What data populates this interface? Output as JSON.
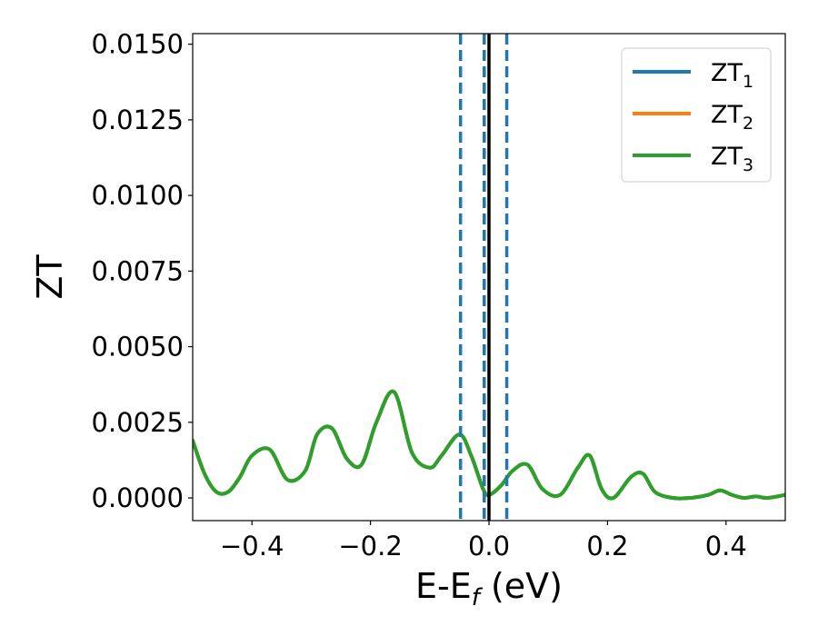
{
  "chart_data": {
    "type": "line",
    "title": "",
    "xlabel": "E-E",
    "xlabel_subscript": "f",
    "xlabel_unit": " (eV)",
    "ylabel": "ZT",
    "xlim": [
      -0.5,
      0.5
    ],
    "ylim": [
      -0.00075,
      0.01535
    ],
    "x_ticks": [
      -0.4,
      -0.2,
      0.0,
      0.2,
      0.4
    ],
    "x_tick_labels": [
      "−0.4",
      "−0.2",
      "0.0",
      "0.2",
      "0.4"
    ],
    "y_ticks": [
      0.0,
      0.0025,
      0.005,
      0.0075,
      0.01,
      0.0125,
      0.015
    ],
    "y_tick_labels": [
      "0.0000",
      "0.0025",
      "0.0050",
      "0.0075",
      "0.0100",
      "0.0125",
      "0.0150"
    ],
    "grid": false,
    "legend_position": "top-right",
    "vertical_lines": [
      {
        "x": -0.048,
        "style": "dashed",
        "color": "#1f77b4"
      },
      {
        "x": -0.008,
        "style": "dashed",
        "color": "#1f77b4"
      },
      {
        "x": 0.0,
        "style": "solid",
        "color": "#000000"
      },
      {
        "x": 0.03,
        "style": "dashed",
        "color": "#1f77b4"
      }
    ],
    "series": [
      {
        "name": "ZT",
        "name_subscript": "1",
        "color": "#1f77b4",
        "x": [
          -0.5,
          -0.48,
          -0.46,
          -0.44,
          -0.42,
          -0.4,
          -0.37,
          -0.34,
          -0.31,
          -0.29,
          -0.265,
          -0.24,
          -0.215,
          -0.19,
          -0.16,
          -0.13,
          -0.1,
          -0.08,
          -0.05,
          -0.03,
          -0.01,
          0.0,
          0.02,
          0.04,
          0.065,
          0.09,
          0.12,
          0.15,
          0.17,
          0.19,
          0.21,
          0.24,
          0.26,
          0.28,
          0.31,
          0.34,
          0.37,
          0.39,
          0.41,
          0.43,
          0.45,
          0.47,
          0.5
        ],
        "y": [
          0.0019,
          0.0008,
          0.0002,
          0.0002,
          0.0007,
          0.0014,
          0.0016,
          0.0006,
          0.0009,
          0.0021,
          0.0023,
          0.0013,
          0.0011,
          0.0025,
          0.0035,
          0.0015,
          0.001,
          0.0014,
          0.0021,
          0.0014,
          0.0003,
          0.0001,
          0.0004,
          0.0009,
          0.0011,
          0.0003,
          0.0001,
          0.001,
          0.0014,
          0.0003,
          0.0,
          0.0007,
          0.0008,
          0.0002,
          0.0,
          0.0,
          0.0001,
          0.00025,
          0.0001,
          0.0,
          5e-05,
          0.0,
          0.0001
        ]
      },
      {
        "name": "ZT",
        "name_subscript": "2",
        "color": "#ff7f0e",
        "x": [
          -0.5,
          -0.48,
          -0.46,
          -0.44,
          -0.42,
          -0.4,
          -0.37,
          -0.34,
          -0.31,
          -0.29,
          -0.265,
          -0.24,
          -0.215,
          -0.19,
          -0.16,
          -0.13,
          -0.1,
          -0.08,
          -0.05,
          -0.03,
          -0.01,
          0.0,
          0.02,
          0.04,
          0.065,
          0.09,
          0.12,
          0.15,
          0.17,
          0.19,
          0.21,
          0.24,
          0.26,
          0.28,
          0.31,
          0.34,
          0.37,
          0.39,
          0.41,
          0.43,
          0.45,
          0.47,
          0.5
        ],
        "y": [
          0.0019,
          0.0008,
          0.0002,
          0.0002,
          0.0007,
          0.0014,
          0.0016,
          0.0006,
          0.0009,
          0.0021,
          0.0023,
          0.0013,
          0.0011,
          0.0025,
          0.0035,
          0.0015,
          0.001,
          0.0014,
          0.0021,
          0.0014,
          0.0003,
          0.0001,
          0.0004,
          0.0009,
          0.0011,
          0.0003,
          0.0001,
          0.001,
          0.0014,
          0.0003,
          0.0,
          0.0007,
          0.0008,
          0.0002,
          0.0,
          0.0,
          0.0001,
          0.00025,
          0.0001,
          0.0,
          5e-05,
          0.0,
          0.0001
        ]
      },
      {
        "name": "ZT",
        "name_subscript": "3",
        "color": "#2ca02c",
        "x": [
          -0.5,
          -0.48,
          -0.46,
          -0.44,
          -0.42,
          -0.4,
          -0.37,
          -0.34,
          -0.31,
          -0.29,
          -0.265,
          -0.24,
          -0.215,
          -0.19,
          -0.16,
          -0.13,
          -0.1,
          -0.08,
          -0.05,
          -0.03,
          -0.01,
          0.0,
          0.02,
          0.04,
          0.065,
          0.09,
          0.12,
          0.15,
          0.17,
          0.19,
          0.21,
          0.24,
          0.26,
          0.28,
          0.31,
          0.34,
          0.37,
          0.39,
          0.41,
          0.43,
          0.45,
          0.47,
          0.5
        ],
        "y": [
          0.0019,
          0.0008,
          0.0002,
          0.0002,
          0.0007,
          0.0014,
          0.0016,
          0.0006,
          0.0009,
          0.0021,
          0.0023,
          0.0013,
          0.0011,
          0.0025,
          0.0035,
          0.0015,
          0.001,
          0.0014,
          0.0021,
          0.0014,
          0.0003,
          0.0001,
          0.0004,
          0.0009,
          0.0011,
          0.0003,
          0.0001,
          0.001,
          0.0014,
          0.0003,
          0.0,
          0.0007,
          0.0008,
          0.0002,
          0.0,
          0.0,
          0.0001,
          0.00025,
          0.0001,
          0.0,
          5e-05,
          0.0,
          0.0001
        ]
      }
    ]
  }
}
